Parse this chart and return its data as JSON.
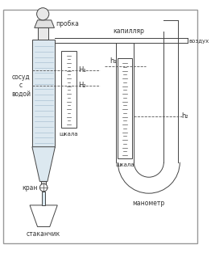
{
  "bg_color": "#ffffff",
  "line_color": "#444444",
  "fill_color": "#dce8f0",
  "labels": {
    "probka": "пробка",
    "kapillar": "капилляр",
    "vozduh": "воздух",
    "sosud": "сосуд\nс\nводой",
    "shkala1": "шкала",
    "shkala2": "шкала",
    "kran": "кран",
    "stakanchik": "стаканчик",
    "manometr": "манометр",
    "H1": "H₁",
    "H2": "H₂",
    "h1": "h₁",
    "h2": "h₂"
  }
}
